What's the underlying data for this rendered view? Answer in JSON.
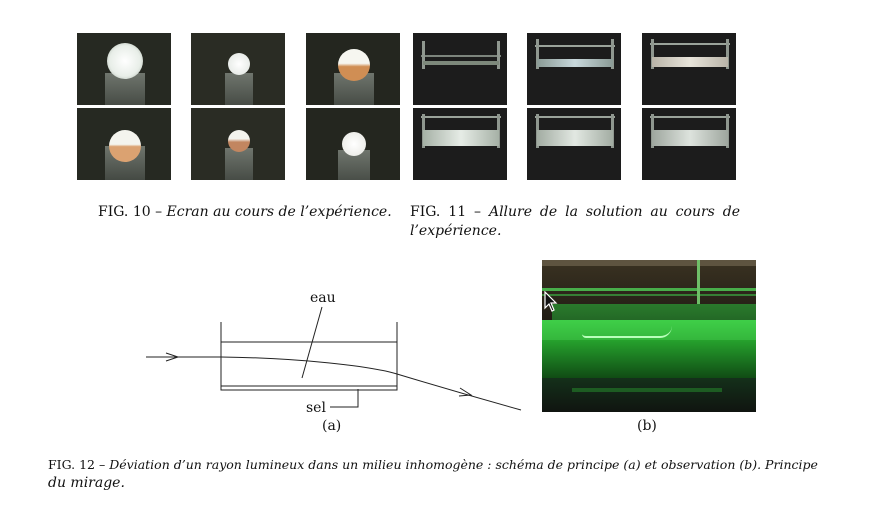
{
  "fig10": {
    "caption_prefix": "FIG. 10 –",
    "caption_text": "Ecran au cours de l’expérience."
  },
  "fig11": {
    "caption_prefix": "FIG. 11 –",
    "caption_line1": "Allure de la solution au cours de",
    "caption_line2": "l’expérience."
  },
  "fig12": {
    "label_water": "eau",
    "label_salt": "sel",
    "sub_a": "(a)",
    "sub_b": "(b)",
    "caption_prefix": "FIG. 12 –",
    "caption_line1": "Déviation d’un rayon lumineux dans un milieu inhomogène : schéma de principe (a) et observation (b). Principe",
    "caption_line2": "du mirage."
  },
  "colors": {
    "photo_green": "#2fb83a",
    "screen_spot": "#f2f2ec",
    "orange_spot": "#d99a5f"
  }
}
